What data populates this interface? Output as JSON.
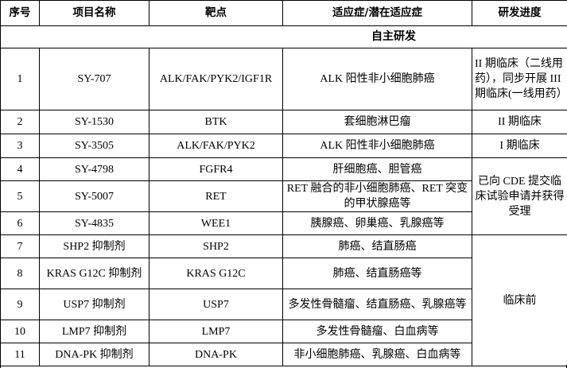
{
  "headers": [
    "序号",
    "项目名称",
    "靶点",
    "适应症/潜在适应症",
    "研发进度"
  ],
  "section_title": "自主研发",
  "rows": [
    {
      "no": "1",
      "name": "SY-707",
      "target": "ALK/FAK/PYK2/IGF1R",
      "indication": "ALK 阳性非小细胞肺癌",
      "progress": "II 期临床（二线用药），同步开展 III 期临床(一线用药）"
    },
    {
      "no": "2",
      "name": "SY-1530",
      "target": "BTK",
      "indication": "套细胞淋巴瘤",
      "progress": "II 期临床"
    },
    {
      "no": "3",
      "name": "SY-3505",
      "target": "ALK/FAK/PYK2",
      "indication": "ALK 阳性非小细胞肺癌",
      "progress": "I 期临床"
    },
    {
      "no": "4",
      "name": "SY-4798",
      "target": "FGFR4",
      "indication": "肝细胞癌、胆管癌"
    },
    {
      "no": "5",
      "name": "SY-5007",
      "target": "RET",
      "indication": "RET 融合的非小细胞肺癌、RET 突变的甲状腺癌等"
    },
    {
      "no": "6",
      "name": "SY-4835",
      "target": "WEE1",
      "indication": "胰腺癌、卵巢癌、乳腺癌等"
    },
    {
      "no": "7",
      "name": "SHP2 抑制剂",
      "target": "SHP2",
      "indication": "肺癌、结直肠癌"
    },
    {
      "no": "8",
      "name": "KRAS G12C 抑制剂",
      "target": "KRAS G12C",
      "indication": "肺癌、结直肠癌等"
    },
    {
      "no": "9",
      "name": "USP7 抑制剂",
      "target": "USP7",
      "indication": "多发性骨髓瘤、结直肠癌、乳腺癌等"
    },
    {
      "no": "10",
      "name": "LMP7 抑制剂",
      "target": "LMP7",
      "indication": "多发性骨髓瘤、白血病等"
    },
    {
      "no": "11",
      "name": "DNA-PK 抑制剂",
      "target": "DNA-PK",
      "indication": "非小细胞肺癌、乳腺癌、白血病等"
    }
  ],
  "group_progress": {
    "rows_4_6": "已向 CDE 提交临床试验申请并获得受理",
    "rows_7_11": "临床前"
  }
}
